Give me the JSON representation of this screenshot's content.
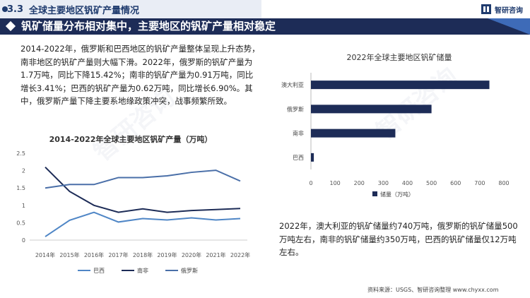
{
  "header": {
    "section_number": "3.3",
    "section_title": "全球主要地区钒矿产量情况",
    "logo_text": "智研咨询"
  },
  "banner": {
    "title": "钒矿储量分布相对集中，主要地区的钒矿产量相对稳定"
  },
  "text": {
    "paragraph1": "2014-2022年，俄罗斯和巴西地区的钒矿产量整体呈现上升态势，南非地区的钒矿产量则大幅下滑。2022年，俄罗斯的钒矿产量为1.7万吨，同比下降15.42%；南非的钒矿产量为0.91万吨，同比增长3.41%；巴西的钒矿产量为0.62万吨，同比增长6.90%。其中，俄罗斯产量下降主要系地缘政策冲突，战事频繁所致。",
    "paragraph2": "2022年，澳大利亚的钒矿储量约740万吨，俄罗斯的钒矿储量500万吨左右，南非的钒矿储量约350万吨，巴西的钒矿储量仅12万吨左右。",
    "source": "资料来源：USGS、智研咨询整理  www.chyxx.com"
  },
  "chart_data": [
    {
      "type": "line",
      "title": "2014-2022年全球主要地区钒矿产量（万吨）",
      "categories": [
        "2014年",
        "2015年",
        "2016年",
        "2017年",
        "2018年",
        "2019年",
        "2020年",
        "2021年",
        "2022年"
      ],
      "yticks": [
        "0",
        "0.5",
        "1",
        "1.5",
        "2",
        "2.5"
      ],
      "ylim": [
        0,
        2.5
      ],
      "grid": false,
      "legend": "bottom",
      "series": [
        {
          "name": "巴西",
          "color": "#4f86c6",
          "values": [
            0.1,
            0.57,
            0.8,
            0.52,
            0.62,
            0.58,
            0.64,
            0.58,
            0.62
          ]
        },
        {
          "name": "南非",
          "color": "#1d2c57",
          "values": [
            2.1,
            1.4,
            1.0,
            0.8,
            0.9,
            0.8,
            0.85,
            0.88,
            0.91
          ]
        },
        {
          "name": "俄罗斯",
          "color": "#4a6fa8",
          "values": [
            1.5,
            1.6,
            1.6,
            1.8,
            1.8,
            1.85,
            1.95,
            2.01,
            1.7
          ]
        }
      ]
    },
    {
      "type": "bar",
      "orientation": "horizontal",
      "title": "2022年全球主要地区钒矿储量",
      "categories": [
        "澳大利亚",
        "俄罗斯",
        "南非",
        "巴西"
      ],
      "values": [
        740,
        500,
        350,
        12
      ],
      "xticks": [
        "0",
        "100",
        "200",
        "300",
        "400",
        "500",
        "600",
        "700",
        "800"
      ],
      "xlim": [
        0,
        800
      ],
      "grid": false,
      "legend": "bottom",
      "series_name": "储量（万吨）",
      "color": "#1d2c57"
    }
  ]
}
